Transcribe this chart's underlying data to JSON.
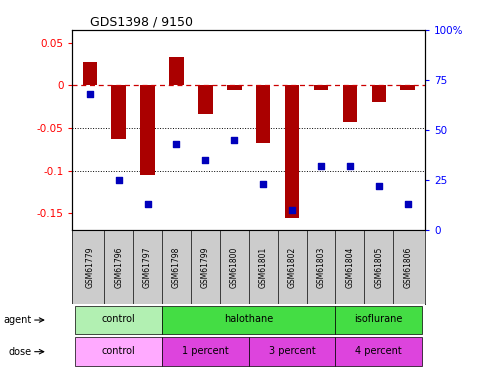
{
  "title": "GDS1398 / 9150",
  "samples": [
    "GSM61779",
    "GSM61796",
    "GSM61797",
    "GSM61798",
    "GSM61799",
    "GSM61800",
    "GSM61801",
    "GSM61802",
    "GSM61803",
    "GSM61804",
    "GSM61805",
    "GSM61806"
  ],
  "log_ratio": [
    0.027,
    -0.063,
    -0.105,
    0.033,
    -0.033,
    -0.005,
    -0.068,
    -0.155,
    -0.005,
    -0.043,
    -0.02,
    -0.005
  ],
  "pct_rank": [
    68,
    25,
    13,
    43,
    35,
    45,
    23,
    10,
    32,
    32,
    22,
    13
  ],
  "agent_groups": [
    {
      "label": "control",
      "start": 0,
      "end": 3,
      "color": "#b2f0b2"
    },
    {
      "label": "halothane",
      "start": 3,
      "end": 9,
      "color": "#44dd44"
    },
    {
      "label": "isoflurane",
      "start": 9,
      "end": 12,
      "color": "#44dd44"
    }
  ],
  "dose_groups": [
    {
      "label": "control",
      "start": 0,
      "end": 3,
      "color": "#ffaaff"
    },
    {
      "label": "1 percent",
      "start": 3,
      "end": 6,
      "color": "#dd44dd"
    },
    {
      "label": "3 percent",
      "start": 6,
      "end": 9,
      "color": "#dd44dd"
    },
    {
      "label": "4 percent",
      "start": 9,
      "end": 12,
      "color": "#dd44dd"
    }
  ],
  "ylim_left": [
    -0.17,
    0.065
  ],
  "yticks_left": [
    0.05,
    0.0,
    -0.05,
    -0.1,
    -0.15
  ],
  "ytick_labels_left": [
    "0.05",
    "0",
    "-0.05",
    "-0.1",
    "-0.15"
  ],
  "yticks_right_pct": [
    100,
    75,
    50,
    25,
    0
  ],
  "bar_color": "#aa0000",
  "dot_color": "#0000bb",
  "hline_color": "#cc0000",
  "bg_color": "#ffffff",
  "sample_bg": "#cccccc",
  "grid_dotted_color": "#555555"
}
